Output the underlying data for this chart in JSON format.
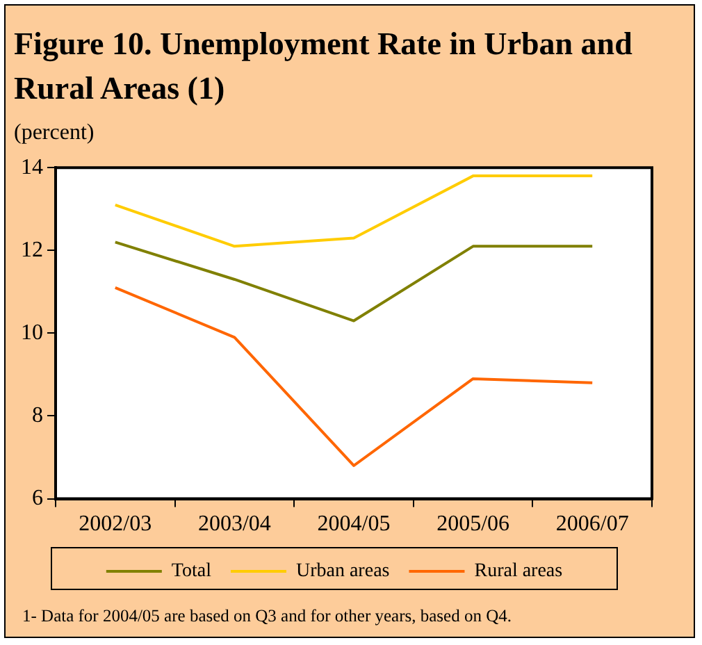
{
  "chart_data": {
    "type": "line",
    "title": "Figure 10. Unemployment Rate in Urban and Rural Areas (1)",
    "subtitle": "(percent)",
    "categories": [
      "2002/03",
      "2003/04",
      "2004/05",
      "2005/06",
      "2006/07"
    ],
    "series": [
      {
        "name": "Total",
        "color": "#808000",
        "values": [
          12.2,
          11.3,
          10.3,
          12.1,
          12.1
        ]
      },
      {
        "name": "Urban areas",
        "color": "#ffcc00",
        "values": [
          13.1,
          12.1,
          12.3,
          13.8,
          13.8
        ]
      },
      {
        "name": "Rural areas",
        "color": "#ff6600",
        "values": [
          11.1,
          9.9,
          6.8,
          8.9,
          8.8
        ]
      }
    ],
    "ylim": [
      6,
      14
    ],
    "yticks": [
      6,
      8,
      10,
      12,
      14
    ],
    "grid": false,
    "legend": "bottom",
    "marker": "none",
    "line_style": "solid",
    "annotations": [
      "1- Data for 2004/05 are based on Q3 and for other years, based on Q4."
    ]
  }
}
